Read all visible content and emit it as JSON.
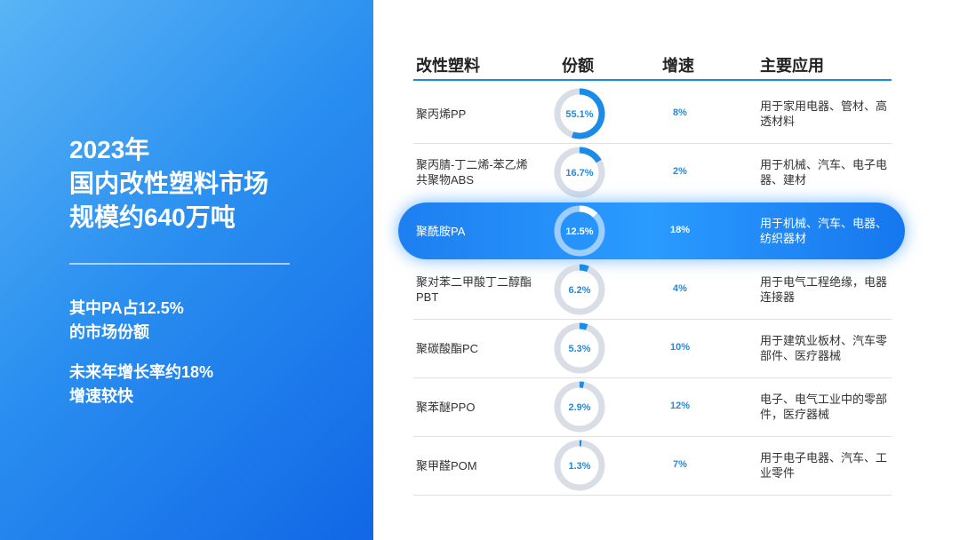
{
  "left": {
    "title_lines": [
      "2023年",
      "国内改性塑料市场",
      "规模约640万吨"
    ],
    "points": [
      [
        "其中PA占12.5%",
        "的市场份额"
      ],
      [
        "未来年增长率约18%",
        "增速较快"
      ]
    ]
  },
  "table": {
    "header": [
      "改性塑料",
      "份额",
      "增速",
      "主要应用"
    ],
    "highlighted_row": 2,
    "rows": [
      {
        "name": "聚丙烯PP",
        "share": {
          "value": 55.1,
          "label": "55.1%"
        },
        "growth": "8%",
        "application": "用于家用电器、管材、高透材料"
      },
      {
        "name": "聚丙腈-丁二烯-苯乙烯共聚物ABS",
        "share": {
          "value": 16.7,
          "label": "16.7%"
        },
        "growth": "2%",
        "application": "用于机械、汽车、电子电器、建材"
      },
      {
        "name": "聚酰胺PA",
        "share": {
          "value": 12.5,
          "label": "12.5%"
        },
        "growth": "18%",
        "application": "用于机械、汽车、电器、纺织器材"
      },
      {
        "name": "聚对苯二甲酸丁二醇酯PBT",
        "share": {
          "value": 6.2,
          "label": "6.2%"
        },
        "growth": "4%",
        "application": "用于电气工程绝缘，电器连接器"
      },
      {
        "name": "聚碳酸酯PC",
        "share": {
          "value": 5.3,
          "label": "5.3%"
        },
        "growth": "10%",
        "application": "用于建筑业板材、汽车零部件、医疗器械"
      },
      {
        "name": "聚苯醚PPO",
        "share": {
          "value": 2.9,
          "label": "2.9%"
        },
        "growth": "12%",
        "application": "电子、电气工业中的零部件，医疗器械"
      },
      {
        "name": "聚甲醛POM",
        "share": {
          "value": 1.3,
          "label": "1.3%"
        },
        "growth": "7%",
        "application": "用于电子电器、汽车、工业零件"
      }
    ]
  }
}
